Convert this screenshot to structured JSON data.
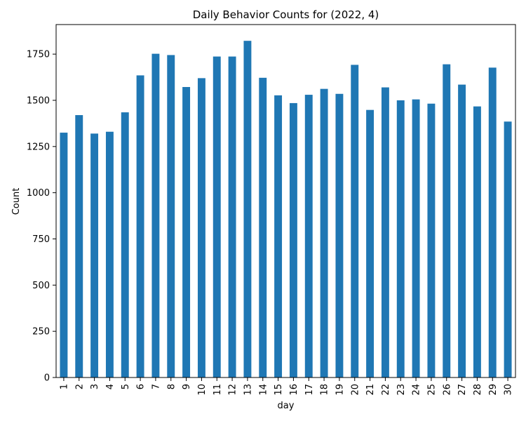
{
  "chart_data": {
    "type": "bar",
    "title": "Daily Behavior Counts for (2022, 4)",
    "xlabel": "day",
    "ylabel": "Count",
    "ylim": [
      0,
      1910
    ],
    "yticks": [
      0,
      250,
      500,
      750,
      1000,
      1250,
      1500,
      1750
    ],
    "grid": false,
    "bar_color": "#1f77b4",
    "categories": [
      "1",
      "2",
      "3",
      "4",
      "5",
      "6",
      "7",
      "8",
      "9",
      "10",
      "11",
      "12",
      "13",
      "14",
      "15",
      "16",
      "17",
      "18",
      "19",
      "20",
      "21",
      "22",
      "23",
      "24",
      "25",
      "26",
      "27",
      "28",
      "29",
      "30"
    ],
    "values": [
      1325,
      1420,
      1320,
      1330,
      1435,
      1635,
      1752,
      1745,
      1572,
      1620,
      1737,
      1737,
      1822,
      1622,
      1527,
      1485,
      1530,
      1562,
      1535,
      1692,
      1448,
      1570,
      1500,
      1505,
      1482,
      1695,
      1585,
      1467,
      1677,
      1385
    ]
  }
}
